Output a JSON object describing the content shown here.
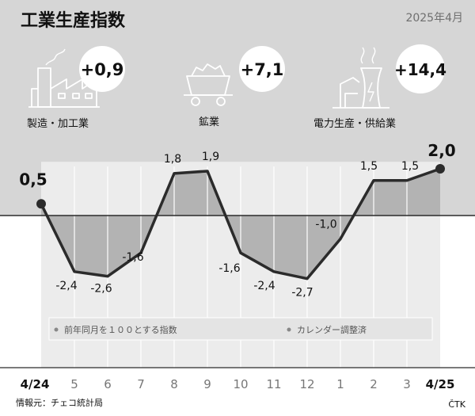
{
  "header": {
    "title": "工業生産指数",
    "date": "2025年4月"
  },
  "sectors": [
    {
      "icon": "factory-icon",
      "value": "+0,9",
      "label": "製造・加工業"
    },
    {
      "icon": "mine-cart-icon",
      "value": "+7,1",
      "label": "鉱業"
    },
    {
      "icon": "power-plant-icon",
      "value": "+14,4",
      "label": "電力生産・供給業"
    }
  ],
  "colors": {
    "top_bg": "#d6d6d6",
    "plot_bg": "#ececec",
    "fill": "#b3b3b3",
    "line": "#2b2b2b",
    "badge": "#ffffff"
  },
  "chart_data": {
    "type": "line",
    "categories": [
      "4/24",
      "5",
      "6",
      "7",
      "8",
      "9",
      "10",
      "11",
      "12",
      "1",
      "2",
      "3",
      "4/25"
    ],
    "values": [
      0.5,
      -2.4,
      -2.6,
      -1.6,
      1.8,
      1.9,
      -1.6,
      -2.4,
      -2.7,
      -1.0,
      1.5,
      1.5,
      2.0
    ],
    "value_labels": [
      "0,5",
      "-2,4",
      "-2,6",
      "-1,6",
      "1,8",
      "1,9",
      "-1,6",
      "-2,4",
      "-2,7",
      "-1,0",
      "1,5",
      "1,5",
      "2,0"
    ],
    "baseline": 0,
    "ylim": [
      -3.2,
      2.3
    ],
    "legend": [
      "前年同月を１００とする指数",
      "カレンダー調整済"
    ],
    "legend_placement": "bottom"
  },
  "footer": {
    "source": "情報元：チェコ統計局",
    "credit": "ČTK"
  }
}
